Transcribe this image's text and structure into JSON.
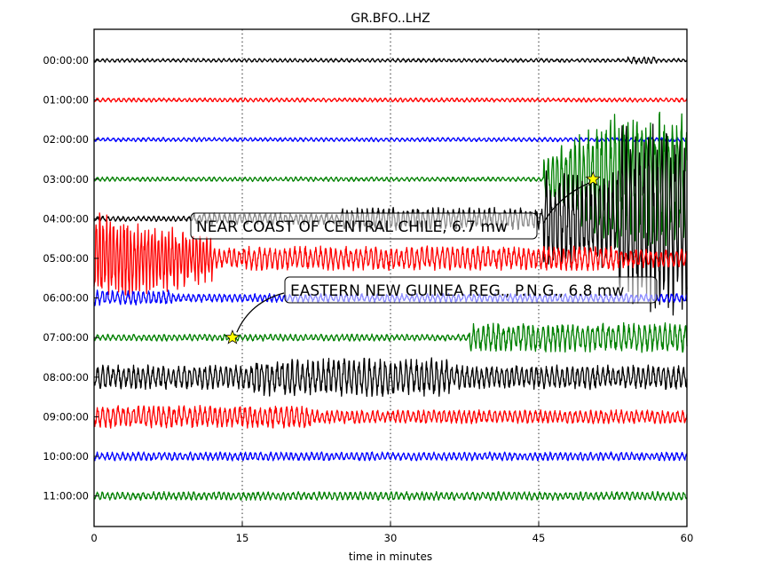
{
  "chart_data": {
    "type": "line",
    "title": "GR.BFO..LHZ",
    "xlabel": "time in minutes",
    "xlim": [
      0,
      60
    ],
    "xticks": [
      "0",
      "15",
      "30",
      "45",
      "60"
    ],
    "grid": "vertical dotted at 15, 30, 45",
    "rows": [
      {
        "label": "00:00:00",
        "color": "#000000"
      },
      {
        "label": "01:00:00",
        "color": "#ff0000"
      },
      {
        "label": "02:00:00",
        "color": "#0000ff"
      },
      {
        "label": "03:00:00",
        "color": "#008000"
      },
      {
        "label": "04:00:00",
        "color": "#000000"
      },
      {
        "label": "05:00:00",
        "color": "#ff0000"
      },
      {
        "label": "06:00:00",
        "color": "#0000ff"
      },
      {
        "label": "07:00:00",
        "color": "#008000"
      },
      {
        "label": "08:00:00",
        "color": "#000000"
      },
      {
        "label": "09:00:00",
        "color": "#ff0000"
      },
      {
        "label": "10:00:00",
        "color": "#0000ff"
      },
      {
        "label": "11:00:00",
        "color": "#008000"
      }
    ],
    "events": [
      {
        "text": "NEAR COAST OF CENTRAL CHILE, 6.7 mw",
        "row": 3,
        "minute": 50.5
      },
      {
        "text": "EASTERN NEW GUINEA REG., P.N.G., 6.8 mw",
        "row": 7,
        "minute": 14
      }
    ]
  }
}
